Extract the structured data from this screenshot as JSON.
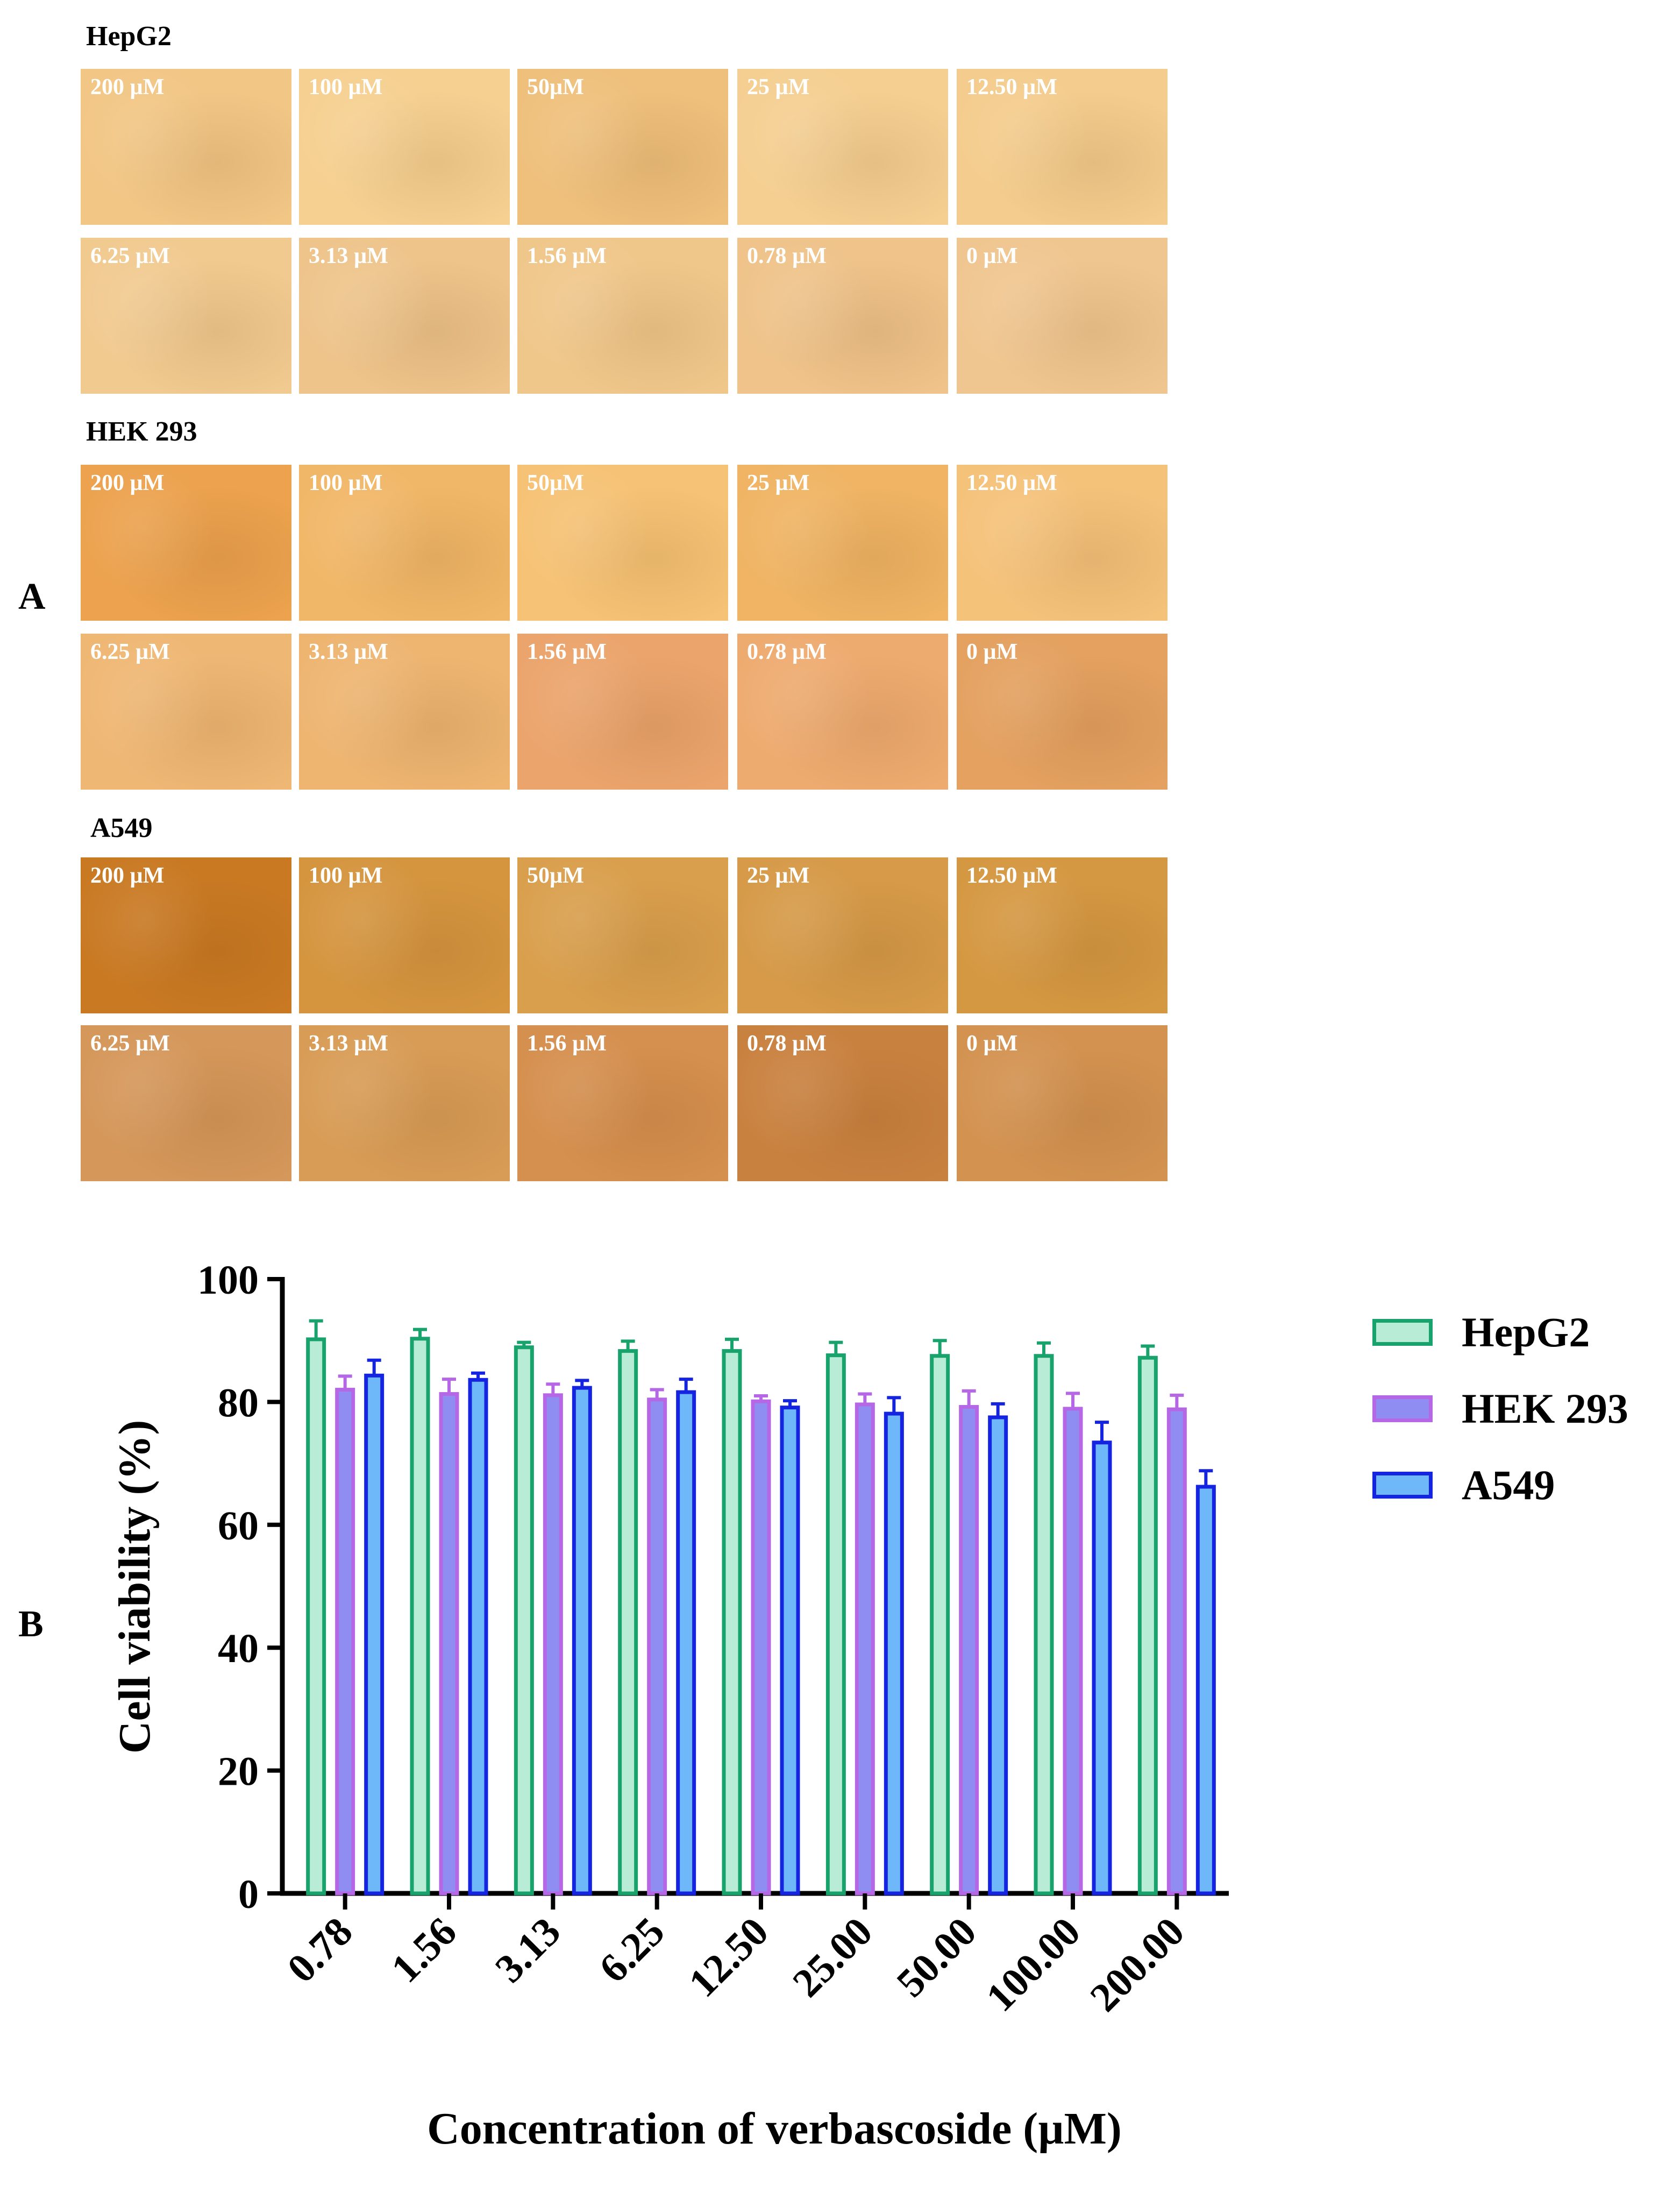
{
  "panel_a_label": "A",
  "panel_b_label": "B",
  "micrographs": {
    "groups": [
      {
        "title": "HepG2",
        "rows": [
          [
            {
              "label": "200 µM",
              "color": "#f2c685"
            },
            {
              "label": "100 µM",
              "color": "#f6d091"
            },
            {
              "label": "50µM",
              "color": "#efc07c"
            },
            {
              "label": "25 µM",
              "color": "#f5cf92"
            },
            {
              "label": "12.50 µM",
              "color": "#f4cc8d"
            }
          ],
          [
            {
              "label": "6.25 µM",
              "color": "#f1ca90"
            },
            {
              "label": "3.13 µM",
              "color": "#eec48b"
            },
            {
              "label": "1.56 µM",
              "color": "#f0c78b"
            },
            {
              "label": "0.78 µM",
              "color": "#efc38a"
            },
            {
              "label": "0 µM",
              "color": "#f0c690"
            }
          ]
        ]
      },
      {
        "title": "HEK 293",
        "rows": [
          [
            {
              "label": "200 µM",
              "color": "#eca24e"
            },
            {
              "label": "100 µM",
              "color": "#f1b768"
            },
            {
              "label": "50µM",
              "color": "#f6c275"
            },
            {
              "label": "25 µM",
              "color": "#f0b464"
            },
            {
              "label": "12.50 µM",
              "color": "#f5c27a"
            }
          ],
          [
            {
              "label": "6.25 µM",
              "color": "#efb774"
            },
            {
              "label": "3.13 µM",
              "color": "#eeb571"
            },
            {
              "label": "1.56 µM",
              "color": "#eba46c"
            },
            {
              "label": "0.78 µM",
              "color": "#eeab70"
            },
            {
              "label": "0 µM",
              "color": "#e4a160"
            }
          ]
        ]
      },
      {
        "title": "A549",
        "rows": [
          [
            {
              "label": "200 µM",
              "color": "#c97922"
            },
            {
              "label": "100 µM",
              "color": "#d5953f"
            },
            {
              "label": "50µM",
              "color": "#d99f4d"
            },
            {
              "label": "25 µM",
              "color": "#d69a48"
            },
            {
              "label": "12.50 µM",
              "color": "#d59842"
            }
          ],
          [
            {
              "label": "6.25 µM",
              "color": "#d5975a"
            },
            {
              "label": "3.13 µM",
              "color": "#d89c56"
            },
            {
              "label": "1.56 µM",
              "color": "#d58f4e"
            },
            {
              "label": "0.78 µM",
              "color": "#c9813f"
            },
            {
              "label": "0 µM",
              "color": "#d39250"
            }
          ]
        ]
      }
    ]
  },
  "chart_data": {
    "type": "bar",
    "title": "",
    "xlabel": "Concentration of verbascoside (µM)",
    "ylabel": "Cell viability (%)",
    "ylim": [
      0,
      100
    ],
    "yticks": [
      "0",
      "20",
      "40",
      "60",
      "80",
      "100"
    ],
    "categories": [
      "0.78",
      "1.56",
      "3.13",
      "6.25",
      "12.50",
      "25.00",
      "50.00",
      "100.00",
      "200.00"
    ],
    "series": [
      {
        "name": "HepG2",
        "fill": "#b8ecd6",
        "stroke": "#19a36c",
        "values": [
          90.2,
          90.3,
          88.9,
          88.3,
          88.3,
          87.6,
          87.5,
          87.5,
          87.2
        ],
        "errors": [
          3.0,
          1.5,
          0.8,
          1.6,
          1.9,
          2.1,
          2.5,
          2.1,
          1.9
        ]
      },
      {
        "name": "HEK 293",
        "fill": "#8f8cf2",
        "stroke": "#b667e6",
        "values": [
          82.0,
          81.3,
          81.1,
          80.4,
          80.1,
          79.6,
          79.2,
          78.9,
          78.8
        ],
        "errors": [
          2.2,
          2.4,
          1.8,
          1.6,
          0.9,
          1.7,
          2.6,
          2.5,
          2.3
        ]
      },
      {
        "name": "A549",
        "fill": "#6eb7f8",
        "stroke": "#1524e0",
        "values": [
          84.3,
          83.6,
          82.3,
          81.6,
          79.1,
          78.1,
          77.5,
          73.4,
          66.2
        ],
        "errors": [
          2.5,
          1.1,
          1.2,
          2.1,
          1.1,
          2.6,
          2.2,
          3.3,
          2.6
        ]
      }
    ],
    "legend_position": "right"
  }
}
